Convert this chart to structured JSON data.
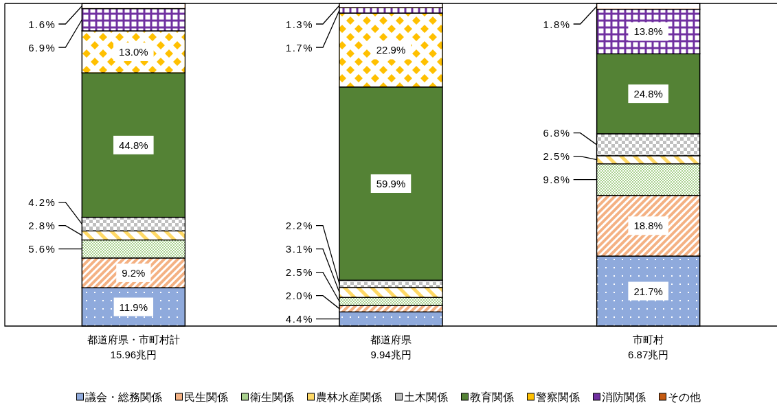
{
  "chart_data": {
    "type": "bar",
    "stacked": true,
    "categories": [
      "都道府県・市町村計\n15.96兆円",
      "都道府県\n9.94兆円",
      "市町村\n6.87兆円"
    ],
    "ylim": [
      0,
      100
    ],
    "legend": "bottom",
    "tick_labels": "x",
    "series": [
      {
        "name": "議会・総務関係",
        "color": "#8faadc",
        "values": [
          11.9,
          4.4,
          21.7
        ],
        "value_labels": [
          "11.9%",
          "4.4%",
          "21.7%"
        ]
      },
      {
        "name": "民生関係",
        "color": "#f4b183",
        "values": [
          9.2,
          2.0,
          18.8
        ],
        "value_labels": [
          "9.2%",
          "2.0%",
          "18.8%"
        ]
      },
      {
        "name": "衛生関係",
        "color": "#a9d18e",
        "values": [
          5.6,
          2.5,
          9.8
        ],
        "value_labels": [
          "5.6%",
          "2.5%",
          "9.8%"
        ]
      },
      {
        "name": "農林水産関係",
        "color": "#ffd966",
        "values": [
          2.8,
          3.1,
          2.5
        ],
        "value_labels": [
          "2.8%",
          "3.1%",
          "2.5%"
        ]
      },
      {
        "name": "土木関係",
        "color": "#bfbfbf",
        "values": [
          4.2,
          2.2,
          6.8
        ],
        "value_labels": [
          "4.2%",
          "2.2%",
          "6.8%"
        ]
      },
      {
        "name": "教育関係",
        "color": "#548235",
        "values": [
          44.8,
          59.9,
          24.8
        ],
        "value_labels": [
          "44.8%",
          "59.9%",
          "24.8%"
        ]
      },
      {
        "name": "警察関係",
        "color": "#ffc000",
        "values": [
          13.0,
          22.9,
          null
        ],
        "value_labels": [
          "13.0%",
          "22.9%",
          null
        ]
      },
      {
        "name": "消防関係",
        "color": "#7030a0",
        "values": [
          6.9,
          1.7,
          13.8
        ],
        "value_labels": [
          "6.9%",
          "1.7%",
          "13.8%"
        ]
      },
      {
        "name": "その他",
        "color": "#c55a11",
        "values": [
          1.6,
          1.3,
          1.8
        ],
        "value_labels": [
          "1.6%",
          "1.3%",
          "1.8%"
        ]
      }
    ]
  }
}
